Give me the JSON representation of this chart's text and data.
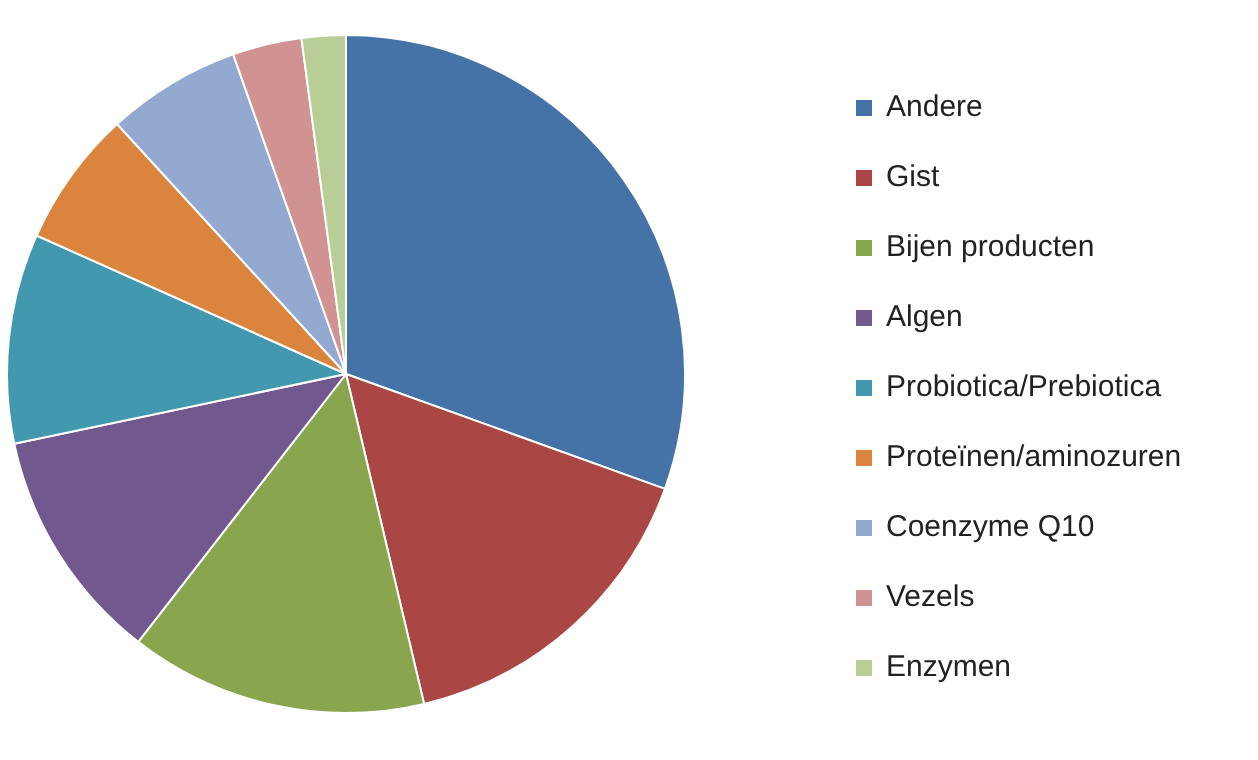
{
  "chart_data": {
    "type": "pie",
    "categories": [
      "Andere",
      "Gist",
      "Bijen producten",
      "Algen",
      "Probiotica/Prebiotica",
      "Proteïnen/aminozuren",
      "Coenzyme Q10",
      "Vezels",
      "Enzymen"
    ],
    "values": [
      30.5,
      15.8,
      14.2,
      11.2,
      10,
      6.5,
      6.4,
      3.3,
      2.1
    ],
    "colors": [
      "#4572a7",
      "#aa4643",
      "#89a54e",
      "#71588f",
      "#4198af",
      "#db843d",
      "#93a9cf",
      "#d19392",
      "#b9cd96"
    ],
    "legend": "right"
  }
}
